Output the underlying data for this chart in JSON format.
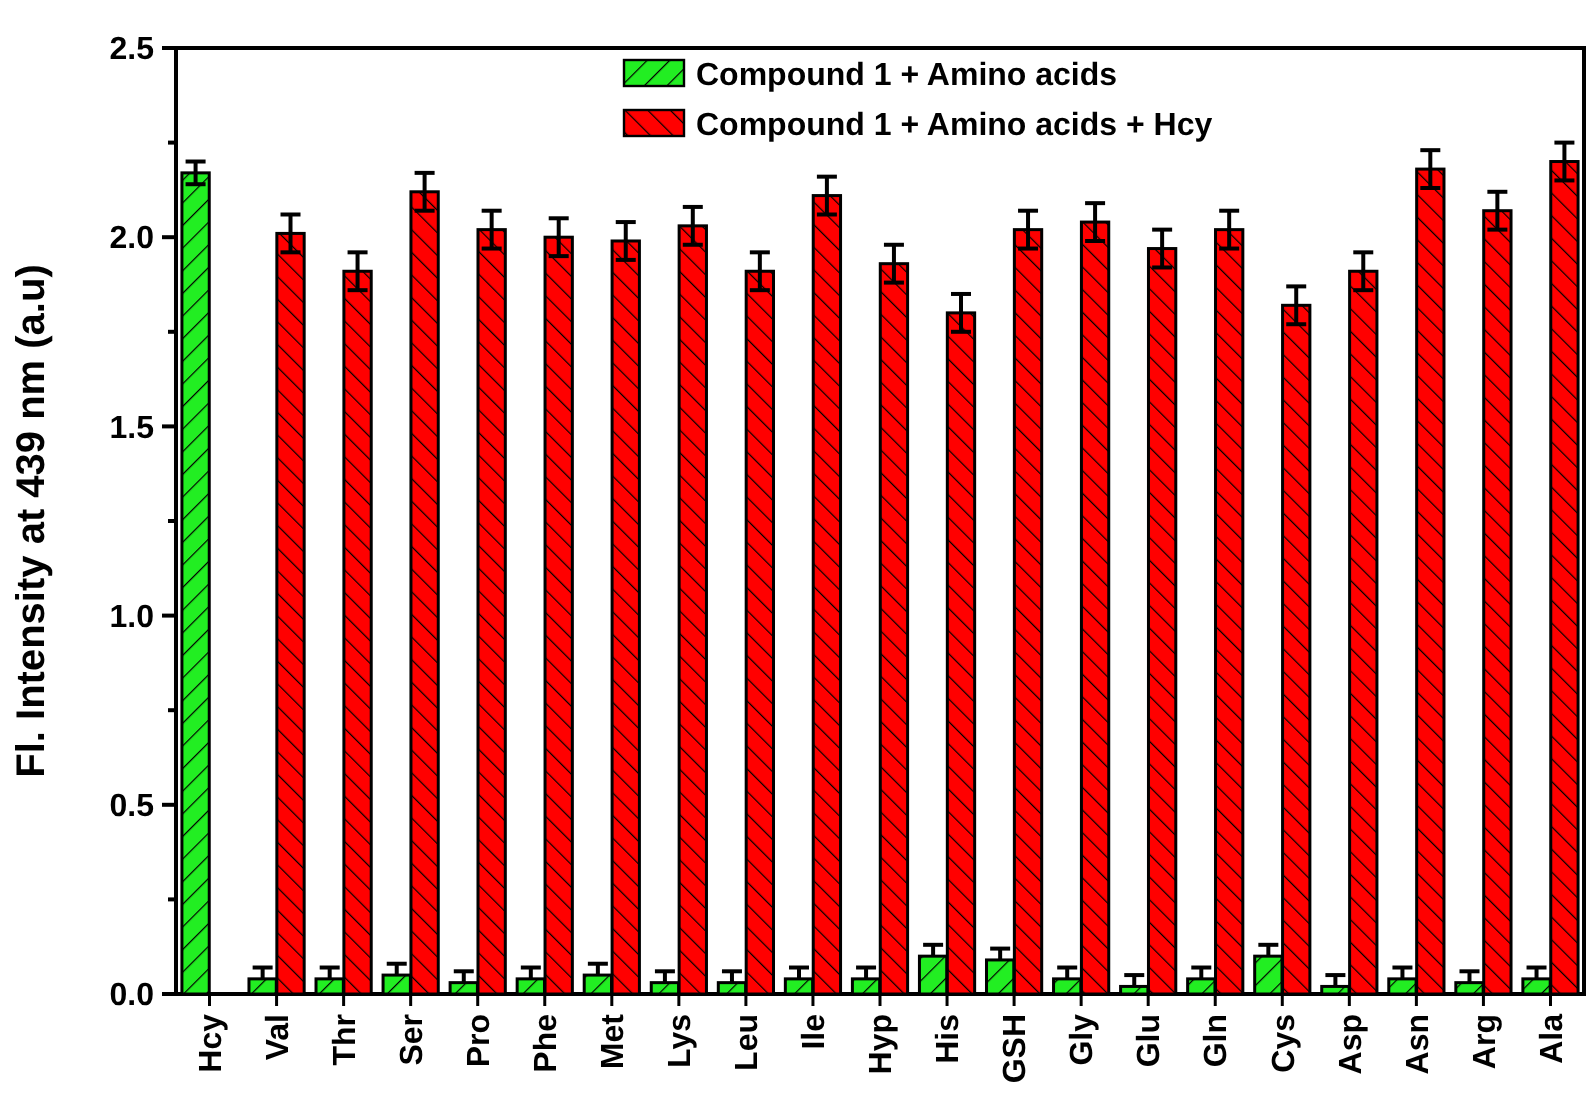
{
  "chart_data": {
    "type": "bar",
    "ylabel": "Fl. Intensity at 439 nm (a.u)",
    "categories": [
      "Hcy",
      "Val",
      "Thr",
      "Ser",
      "Pro",
      "Phe",
      "Met",
      "Lys",
      "Leu",
      "Ile",
      "Hyp",
      "His",
      "GSH",
      "Gly",
      "Glu",
      "Gln",
      "Cys",
      "Asp",
      "Asn",
      "Arg",
      "Ala"
    ],
    "series": [
      {
        "name": "Compound 1 + Amino acids",
        "color": "#22ee22",
        "values": [
          2.17,
          0.04,
          0.04,
          0.05,
          0.03,
          0.04,
          0.05,
          0.03,
          0.03,
          0.04,
          0.04,
          0.1,
          0.09,
          0.04,
          0.02,
          0.04,
          0.1,
          0.02,
          0.04,
          0.03,
          0.04
        ],
        "errors": [
          0.03,
          [
            0.04,
            0.07
          ],
          [
            0.04,
            0.07
          ],
          [
            0.05,
            0.08
          ],
          [
            0.03,
            0.06
          ],
          [
            0.04,
            0.07
          ],
          [
            0.05,
            0.08
          ],
          [
            0.03,
            0.06
          ],
          [
            0.03,
            0.06
          ],
          [
            0.04,
            0.07
          ],
          [
            0.04,
            0.07
          ],
          [
            0.1,
            0.13
          ],
          [
            0.09,
            0.12
          ],
          [
            0.04,
            0.07
          ],
          [
            0.02,
            0.05
          ],
          [
            0.04,
            0.07
          ],
          [
            0.1,
            0.13
          ],
          [
            0.02,
            0.05
          ],
          [
            0.04,
            0.07
          ],
          [
            0.03,
            0.06
          ],
          [
            0.04,
            0.07
          ]
        ]
      },
      {
        "name": "Compound 1 + Amino acids + Hcy",
        "color": "#ff0000",
        "values": [
          null,
          2.01,
          1.91,
          2.12,
          2.02,
          2.0,
          1.99,
          2.03,
          1.91,
          2.11,
          1.93,
          1.8,
          2.02,
          2.04,
          1.97,
          2.02,
          1.82,
          1.91,
          2.18,
          2.07,
          2.2
        ],
        "errors": [
          null,
          0.05,
          0.05,
          0.05,
          0.05,
          0.05,
          0.05,
          0.05,
          0.05,
          0.05,
          0.05,
          0.05,
          0.05,
          0.05,
          0.05,
          0.05,
          0.05,
          0.05,
          0.05,
          0.05,
          0.05
        ]
      }
    ],
    "ylim": [
      0,
      2.5
    ],
    "yticks": [
      {
        "value": 0,
        "label": "0.0"
      },
      {
        "value": 0.25,
        "label": null
      },
      0.5,
      {
        "value": 0.75,
        "label": null
      },
      {
        "value": 1,
        "label": "1.0"
      },
      {
        "value": 1.25,
        "label": null
      },
      1.5,
      {
        "value": 1.75,
        "label": null
      },
      {
        "value": 2,
        "label": "2.0"
      },
      {
        "value": 2.25,
        "label": null
      },
      2.5
    ],
    "legend": "top right",
    "grid": false
  }
}
